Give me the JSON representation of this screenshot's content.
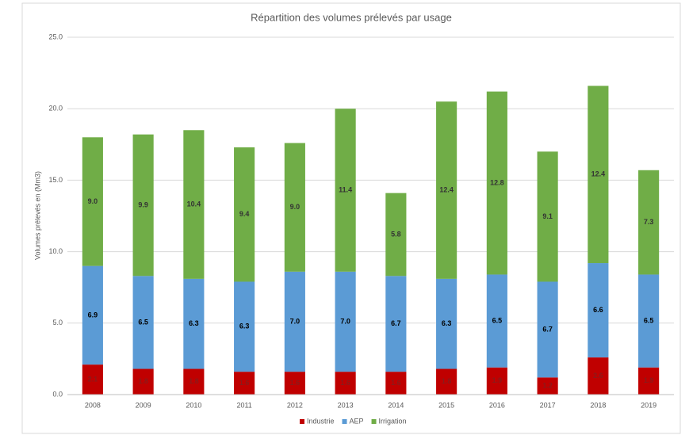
{
  "chart_data": {
    "type": "stacked_bar",
    "title": "Répartition des volumes prélevés par usage",
    "y_label": "Volumes prélevés en (Mm3)",
    "categories": [
      "2008",
      "2009",
      "2010",
      "2011",
      "2012",
      "2013",
      "2014",
      "2015",
      "2016",
      "2017",
      "2018",
      "2019"
    ],
    "series": [
      {
        "name": "Industrie",
        "color": "#c00000",
        "label_color": "#8b1a1a",
        "values": [
          2.1,
          1.8,
          1.8,
          1.6,
          1.6,
          1.6,
          1.6,
          1.8,
          1.9,
          1.2,
          2.6,
          1.9
        ],
        "value_labels": [
          "2.1",
          "1.8",
          "1.8",
          "1.6",
          "1.6",
          "1.6",
          "1.6",
          "1.8",
          "1.9",
          "1.2",
          "2.6",
          "1.9"
        ]
      },
      {
        "name": "AEP",
        "color": "#5b9bd5",
        "label_color": "#000000",
        "values": [
          6.9,
          6.5,
          6.3,
          6.3,
          7.0,
          7.0,
          6.7,
          6.3,
          6.5,
          6.7,
          6.6,
          6.5
        ],
        "value_labels": [
          "6.9",
          "6.5",
          "6.3",
          "6.3",
          "7.0",
          "7.0",
          "6.7",
          "6.3",
          "6.5",
          "6.7",
          "6.6",
          "6.5"
        ]
      },
      {
        "name": "Irrigation",
        "color": "#70ad47",
        "label_color": "#333333",
        "values": [
          9.0,
          9.9,
          10.4,
          9.4,
          9.0,
          11.4,
          5.8,
          12.4,
          12.8,
          9.1,
          12.4,
          7.3
        ],
        "value_labels": [
          "9.0",
          "9.9",
          "10.4",
          "9.4",
          "9.0",
          "11.4",
          "5.8",
          "12.4",
          "12.8",
          "9.1",
          "12.4",
          "7.3"
        ]
      }
    ],
    "ylim": [
      0,
      25
    ],
    "yticks": [
      {
        "value": 0,
        "label": "0.0"
      },
      {
        "value": 5,
        "label": "5.0"
      },
      {
        "value": 10,
        "label": "10.0"
      },
      {
        "value": 15,
        "label": "15.0"
      },
      {
        "value": 20,
        "label": "20.0"
      },
      {
        "value": 25,
        "label": "25.0"
      }
    ],
    "grid": true,
    "legend": "bottom"
  }
}
